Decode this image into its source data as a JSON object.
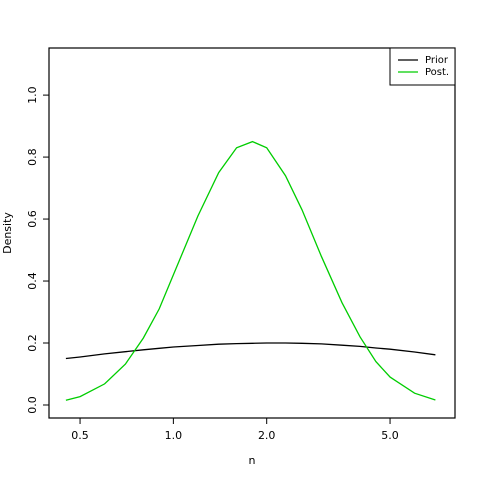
{
  "chart_data": {
    "type": "line",
    "x_label": "n",
    "y_label": "Density",
    "x": [
      0.45,
      0.5,
      0.6,
      0.7,
      0.8,
      0.9,
      1.0,
      1.2,
      1.4,
      1.6,
      1.8,
      2.0,
      2.3,
      2.6,
      3.0,
      3.5,
      4.0,
      4.5,
      5.0,
      6.0,
      7.0
    ],
    "series": [
      {
        "name": "Prior",
        "color": "#000000",
        "values": [
          0.15,
          0.155,
          0.165,
          0.172,
          0.178,
          0.183,
          0.187,
          0.192,
          0.196,
          0.198,
          0.199,
          0.2,
          0.2,
          0.199,
          0.197,
          0.193,
          0.189,
          0.184,
          0.18,
          0.171,
          0.162
        ]
      },
      {
        "name": "Post.",
        "color": "#00cd00",
        "values": [
          0.015,
          0.027,
          0.068,
          0.132,
          0.216,
          0.31,
          0.42,
          0.61,
          0.75,
          0.83,
          0.85,
          0.83,
          0.74,
          0.63,
          0.48,
          0.33,
          0.22,
          0.14,
          0.09,
          0.038,
          0.016
        ]
      }
    ],
    "x_log": true,
    "xlim": [
      0.397,
      8.1
    ],
    "xticks": [
      0.5,
      {
        "value": 1,
        "label": "1.0"
      },
      {
        "value": 2,
        "label": "2.0"
      },
      {
        "value": 5,
        "label": "5.0"
      }
    ],
    "ylim": [
      -0.042,
      1.152
    ],
    "yticks": [
      {
        "value": 0,
        "label": "0.0"
      },
      0.2,
      0.4,
      0.6,
      0.8,
      {
        "value": 1,
        "label": "1.0"
      }
    ],
    "legend": "top-right"
  }
}
